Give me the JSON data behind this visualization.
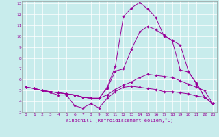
{
  "xlabel": "Windchill (Refroidissement éolien,°C)",
  "bg_color": "#c8ecec",
  "line_color": "#990099",
  "grid_color": "#ffffff",
  "xlim": [
    -0.5,
    23.5
  ],
  "ylim": [
    3,
    13.2
  ],
  "xticks": [
    0,
    1,
    2,
    3,
    4,
    5,
    6,
    7,
    8,
    9,
    10,
    11,
    12,
    13,
    14,
    15,
    16,
    17,
    18,
    19,
    20,
    21,
    22,
    23
  ],
  "yticks": [
    3,
    4,
    5,
    6,
    7,
    8,
    9,
    10,
    11,
    12,
    13
  ],
  "series": [
    [
      5.3,
      5.2,
      5.0,
      4.8,
      4.6,
      4.6,
      3.6,
      3.4,
      3.8,
      3.4,
      4.3,
      4.9,
      5.3,
      5.4,
      5.3,
      5.2,
      5.1,
      4.9,
      4.9,
      4.8,
      4.7,
      4.5,
      4.4,
      3.8
    ],
    [
      5.3,
      5.2,
      5.0,
      4.9,
      4.8,
      4.7,
      4.6,
      4.4,
      4.3,
      4.3,
      4.6,
      5.1,
      5.5,
      5.8,
      6.2,
      6.5,
      6.4,
      6.3,
      6.2,
      5.9,
      5.6,
      5.3,
      5.0,
      3.8
    ],
    [
      5.3,
      5.2,
      5.0,
      4.9,
      4.8,
      4.7,
      4.6,
      4.4,
      4.3,
      4.3,
      5.2,
      6.8,
      7.0,
      8.8,
      10.4,
      10.9,
      10.6,
      10.1,
      9.6,
      9.2,
      6.8,
      5.6,
      4.4,
      3.8
    ],
    [
      5.3,
      5.2,
      5.0,
      4.9,
      4.8,
      4.7,
      4.6,
      4.4,
      4.3,
      4.3,
      5.3,
      7.2,
      11.8,
      12.6,
      13.1,
      12.5,
      11.7,
      10.0,
      9.6,
      6.9,
      6.7,
      5.7,
      4.4,
      3.8
    ]
  ]
}
